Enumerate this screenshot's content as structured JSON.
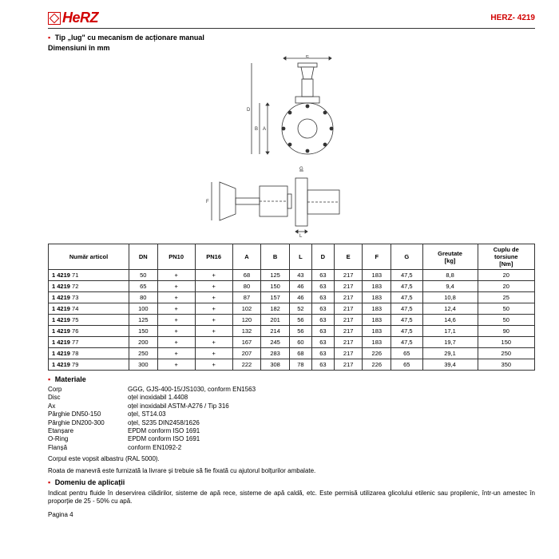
{
  "header": {
    "logo_text": "HeRZ",
    "doc_code": "HERZ- 4219"
  },
  "section1": {
    "title_prefix": "Tip „lug\" cu mecanism de acționare manual",
    "subtitle": "Dimensiuni în mm"
  },
  "table": {
    "columns": [
      "Număr articol",
      "DN",
      "PN10",
      "PN16",
      "A",
      "B",
      "L",
      "D",
      "E",
      "F",
      "G",
      "Greutate\n[kg]",
      "Cuplu de\ntorsiune\n[Nm]"
    ],
    "rows": [
      [
        "1 4219 71",
        "50",
        "+",
        "+",
        "68",
        "125",
        "43",
        "63",
        "217",
        "183",
        "47,5",
        "8,8",
        "20"
      ],
      [
        "1 4219 72",
        "65",
        "+",
        "+",
        "80",
        "150",
        "46",
        "63",
        "217",
        "183",
        "47,5",
        "9,4",
        "20"
      ],
      [
        "1 4219 73",
        "80",
        "+",
        "+",
        "87",
        "157",
        "46",
        "63",
        "217",
        "183",
        "47,5",
        "10,8",
        "25"
      ],
      [
        "1 4219 74",
        "100",
        "+",
        "+",
        "102",
        "182",
        "52",
        "63",
        "217",
        "183",
        "47,5",
        "12,4",
        "50"
      ],
      [
        "1 4219 75",
        "125",
        "+",
        "+",
        "120",
        "201",
        "56",
        "63",
        "217",
        "183",
        "47,5",
        "14,6",
        "50"
      ],
      [
        "1 4219 76",
        "150",
        "+",
        "+",
        "132",
        "214",
        "56",
        "63",
        "217",
        "183",
        "47,5",
        "17,1",
        "90"
      ],
      [
        "1 4219 77",
        "200",
        "+",
        "+",
        "167",
        "245",
        "60",
        "63",
        "217",
        "183",
        "47,5",
        "19,7",
        "150"
      ],
      [
        "1 4219 78",
        "250",
        "+",
        "+",
        "207",
        "283",
        "68",
        "63",
        "217",
        "226",
        "65",
        "29,1",
        "250"
      ],
      [
        "1 4219 79",
        "300",
        "+",
        "+",
        "222",
        "308",
        "78",
        "63",
        "217",
        "226",
        "65",
        "39,4",
        "350"
      ]
    ]
  },
  "materials": {
    "title": "Materiale",
    "rows": [
      {
        "k": "Corp",
        "v": "GGG, GJS-400-15/JS1030, conform EN1563"
      },
      {
        "k": "Disc",
        "v": "oțel inoxidabil 1.4408"
      },
      {
        "k": "Ax",
        "v": "oțel inoxidabil  ASTM-A276 / Tip 316"
      },
      {
        "k": "Pârghie DN50-150",
        "v": "oțel, ST14.03"
      },
      {
        "k": "Pârghie DN200-300",
        "v": "oțel, S235 DIN2458/1626"
      },
      {
        "k": "Etanșare",
        "v": "EPDM conform ISO 1691"
      },
      {
        "k": "O-Ring",
        "v": "EPDM conform ISO 1691"
      },
      {
        "k": "Flanșă",
        "v": "conform EN1092-2"
      }
    ],
    "note": "Corpul este vopsit albastru (RAL 5000)."
  },
  "handwheel_note": "Roata de manevră este furnizată la livrare și trebuie să fie fixată cu ajutorul bolțurilor ambalate.",
  "applications": {
    "title": "Domeniu de aplicații",
    "text": "Indicat pentru fluide în deservirea clădirilor, sisteme de apă rece, sisteme de apă caldă, etc. Este permisă utilizarea glicolului etilenic sau propilenic, într-un amestec în proporție de 25 - 50% cu apă."
  },
  "footer": "Pagina  4"
}
